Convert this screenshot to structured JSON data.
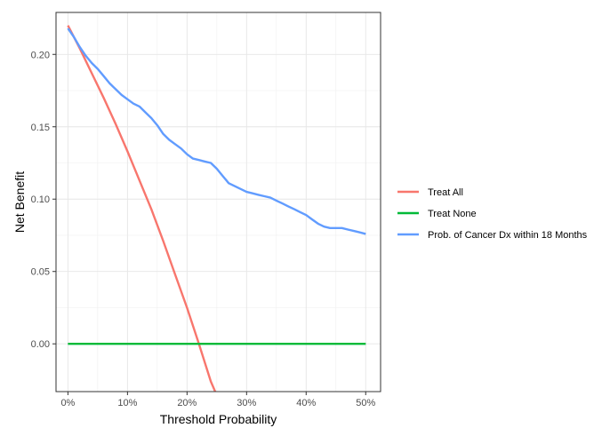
{
  "chart_data": {
    "type": "line",
    "title": "",
    "xlabel": "Threshold Probability",
    "ylabel": "Net Benefit",
    "xlim": [
      -0.02,
      0.525
    ],
    "ylim": [
      -0.033,
      0.229
    ],
    "grid": true,
    "legend_placement": "right",
    "x_ticks": [
      {
        "value": 0.0,
        "label": "0%"
      },
      {
        "value": 0.1,
        "label": "10%"
      },
      {
        "value": 0.2,
        "label": "20%"
      },
      {
        "value": 0.3,
        "label": "30%"
      },
      {
        "value": 0.4,
        "label": "40%"
      },
      {
        "value": 0.5,
        "label": "50%"
      }
    ],
    "y_ticks": [
      {
        "value": 0.0,
        "label": "0.00"
      },
      {
        "value": 0.05,
        "label": "0.05"
      },
      {
        "value": 0.1,
        "label": "0.10"
      },
      {
        "value": 0.15,
        "label": "0.15"
      },
      {
        "value": 0.2,
        "label": "0.20"
      }
    ],
    "series": [
      {
        "name": "Treat All",
        "color": "#F8766D",
        "x": [
          0.0,
          0.02,
          0.04,
          0.06,
          0.08,
          0.1,
          0.12,
          0.14,
          0.16,
          0.18,
          0.2,
          0.22,
          0.24,
          0.2472
        ],
        "y": [
          0.22,
          0.204,
          0.187,
          0.17,
          0.152,
          0.133,
          0.113,
          0.093,
          0.071,
          0.048,
          0.025,
          0.0,
          -0.026,
          -0.033
        ]
      },
      {
        "name": "Treat None",
        "color": "#00BA38",
        "x": [
          0.0,
          0.5
        ],
        "y": [
          0.0,
          0.0
        ]
      },
      {
        "name": "Prob. of Cancer Dx within 18 Months",
        "color": "#619CFF",
        "x": [
          0.0,
          0.01,
          0.02,
          0.03,
          0.04,
          0.05,
          0.06,
          0.07,
          0.08,
          0.09,
          0.1,
          0.11,
          0.12,
          0.13,
          0.14,
          0.15,
          0.16,
          0.17,
          0.18,
          0.19,
          0.2,
          0.21,
          0.22,
          0.23,
          0.24,
          0.25,
          0.26,
          0.27,
          0.28,
          0.29,
          0.3,
          0.31,
          0.32,
          0.33,
          0.34,
          0.35,
          0.36,
          0.37,
          0.38,
          0.39,
          0.4,
          0.41,
          0.42,
          0.43,
          0.44,
          0.45,
          0.46,
          0.47,
          0.48,
          0.49,
          0.5
        ],
        "y": [
          0.218,
          0.212,
          0.205,
          0.199,
          0.194,
          0.19,
          0.185,
          0.18,
          0.176,
          0.172,
          0.169,
          0.166,
          0.164,
          0.16,
          0.156,
          0.151,
          0.145,
          0.141,
          0.138,
          0.135,
          0.131,
          0.128,
          0.127,
          0.126,
          0.125,
          0.121,
          0.116,
          0.111,
          0.109,
          0.107,
          0.105,
          0.104,
          0.103,
          0.102,
          0.101,
          0.099,
          0.097,
          0.095,
          0.093,
          0.091,
          0.089,
          0.086,
          0.083,
          0.081,
          0.08,
          0.08,
          0.08,
          0.079,
          0.078,
          0.077,
          0.076
        ]
      }
    ]
  }
}
